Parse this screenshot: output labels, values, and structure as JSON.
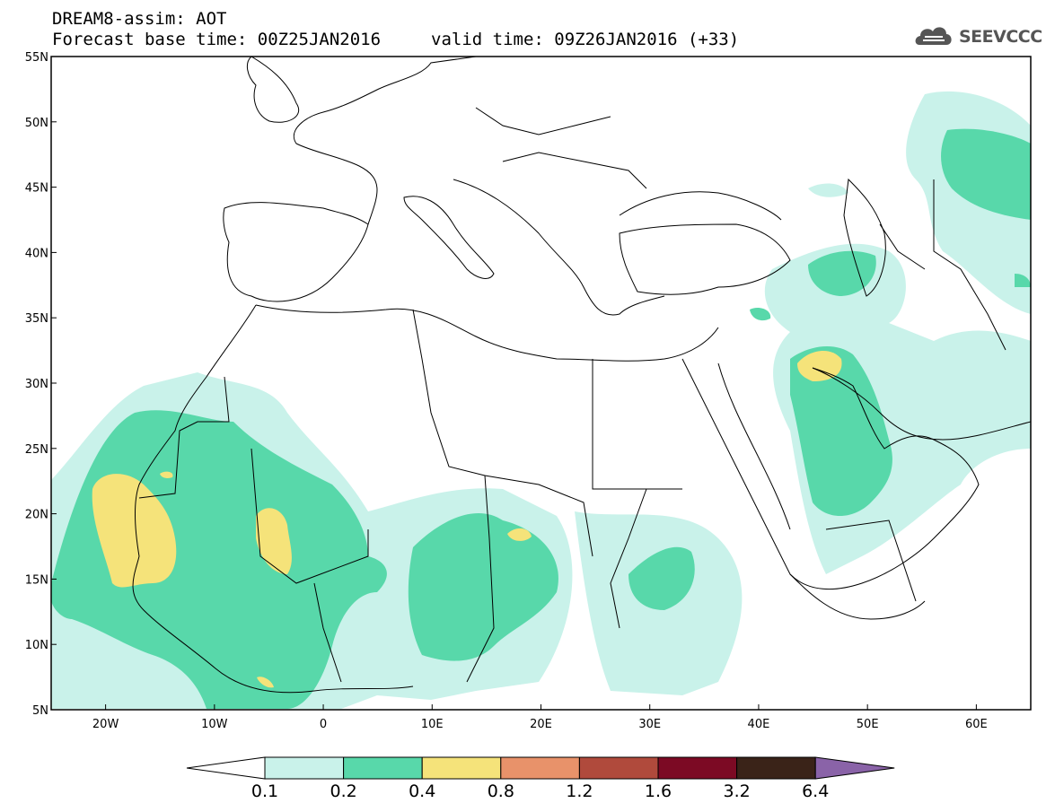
{
  "title": {
    "line1": "DREAM8-assim: AOT",
    "line2": "Forecast base time: 00Z25JAN2016",
    "valid": "valid time: 09Z26JAN2016 (+33)"
  },
  "logo": {
    "text": "SEEVCCC",
    "icon": "cloud-icon"
  },
  "map": {
    "lat_range": [
      5,
      55
    ],
    "lon_range": [
      -25,
      65
    ],
    "lat_ticks": [
      "5N",
      "10N",
      "15N",
      "20N",
      "25N",
      "30N",
      "35N",
      "40N",
      "45N",
      "50N",
      "55N"
    ],
    "lon_ticks": [
      "20W",
      "10W",
      "0",
      "10E",
      "20E",
      "30E",
      "40E",
      "50E",
      "60E"
    ],
    "variable": "AOT"
  },
  "colorbar": {
    "labels": [
      "0.1",
      "0.2",
      "0.4",
      "0.8",
      "1.2",
      "1.6",
      "3.2",
      "6.4"
    ],
    "colors": [
      "#c9f2ea",
      "#58d8aa",
      "#f5e37a",
      "#e8926a",
      "#b04a3c",
      "#7c0a24",
      "#3a2318",
      "#8a63a8"
    ],
    "under_color": "#ffffff"
  },
  "aot_levels": {
    "c01": "#c9f2ea",
    "c02": "#58d8aa",
    "c04": "#f5e37a"
  }
}
